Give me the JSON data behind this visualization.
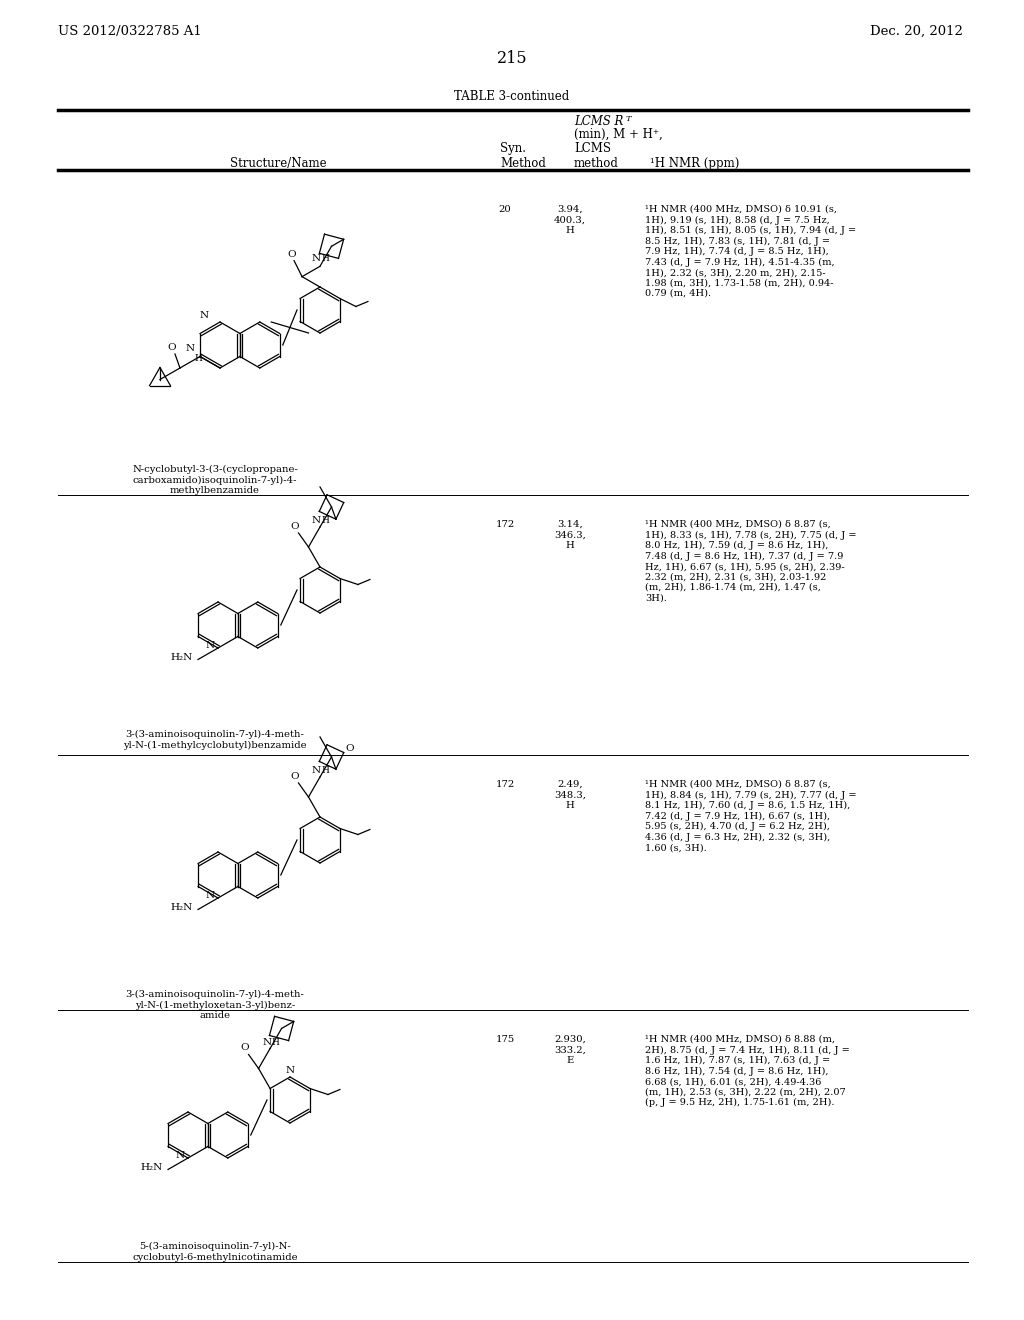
{
  "page_header_left": "US 2012/0322785 A1",
  "page_header_right": "Dec. 20, 2012",
  "page_number": "215",
  "table_title": "TABLE 3-continued",
  "rows": [
    {
      "syn_method": "20",
      "lcms_rt": "3.94,\n400.3,\nH",
      "hnmr": "¹H NMR (400 MHz, DMSO) δ 10.91 (s,\n1H), 9.19 (s, 1H), 8.58 (d, J = 7.5 Hz,\n1H), 8.51 (s, 1H), 8.05 (s, 1H), 7.94 (d, J =\n8.5 Hz, 1H), 7.83 (s, 1H), 7.81 (d, J =\n7.9 Hz, 1H), 7.74 (d, J = 8.5 Hz, 1H),\n7.43 (d, J = 7.9 Hz, 1H), 4.51-4.35 (m,\n1H), 2.32 (s, 3H), 2.20 m, 2H), 2.15-\n1.98 (m, 3H), 1.73-1.58 (m, 2H), 0.94-\n0.79 (m, 4H).",
      "name": "N-cyclobutyl-3-(3-(cyclopropane-\ncarboxamido)isoquinolin-7-yl)-4-\nmethylbenzamide"
    },
    {
      "syn_method": "172",
      "lcms_rt": "3.14,\n346.3,\nH",
      "hnmr": "¹H NMR (400 MHz, DMSO) δ 8.87 (s,\n1H), 8.33 (s, 1H), 7.78 (s, 2H), 7.75 (d, J =\n8.0 Hz, 1H), 7.59 (d, J = 8.6 Hz, 1H),\n7.48 (d, J = 8.6 Hz, 1H), 7.37 (d, J = 7.9\nHz, 1H), 6.67 (s, 1H), 5.95 (s, 2H), 2.39-\n2.32 (m, 2H), 2.31 (s, 3H), 2.03-1.92\n(m, 2H), 1.86-1.74 (m, 2H), 1.47 (s,\n3H).",
      "name": "3-(3-aminoisoquinolin-7-yl)-4-meth-\nyl-N-(1-methylcyclobutyl)benzamide"
    },
    {
      "syn_method": "172",
      "lcms_rt": "2.49,\n348.3,\nH",
      "hnmr": "¹H NMR (400 MHz, DMSO) δ 8.87 (s,\n1H), 8.84 (s, 1H), 7.79 (s, 2H), 7.77 (d, J =\n8.1 Hz, 1H), 7.60 (d, J = 8.6, 1.5 Hz, 1H),\n7.42 (d, J = 7.9 Hz, 1H), 6.67 (s, 1H),\n5.95 (s, 2H), 4.70 (d, J = 6.2 Hz, 2H),\n4.36 (d, J = 6.3 Hz, 2H), 2.32 (s, 3H),\n1.60 (s, 3H).",
      "name": "3-(3-aminoisoquinolin-7-yl)-4-meth-\nyl-N-(1-methyloxetan-3-yl)benz-\namide"
    },
    {
      "syn_method": "175",
      "lcms_rt": "2.930,\n333.2,\nE",
      "hnmr": "¹H NMR (400 MHz, DMSO) δ 8.88 (m,\n2H), 8.75 (d, J = 7.4 Hz, 1H), 8.11 (d, J =\n1.6 Hz, 1H), 7.87 (s, 1H), 7.63 (d, J =\n8.6 Hz, 1H), 7.54 (d, J = 8.6 Hz, 1H),\n6.68 (s, 1H), 6.01 (s, 2H), 4.49-4.36\n(m, 1H), 2.53 (s, 3H), 2.22 (m, 2H), 2.07\n(p, J = 9.5 Hz, 2H), 1.75-1.61 (m, 2H).",
      "name": "5-(3-aminoisoquinolin-7-yl)-N-\ncyclobutyl-6-methylnicotinamide"
    }
  ],
  "background_color": "#ffffff",
  "font_size_header": 8.5,
  "font_size_body": 7.2,
  "font_size_page": 9.5,
  "font_size_nmr": 7.0
}
